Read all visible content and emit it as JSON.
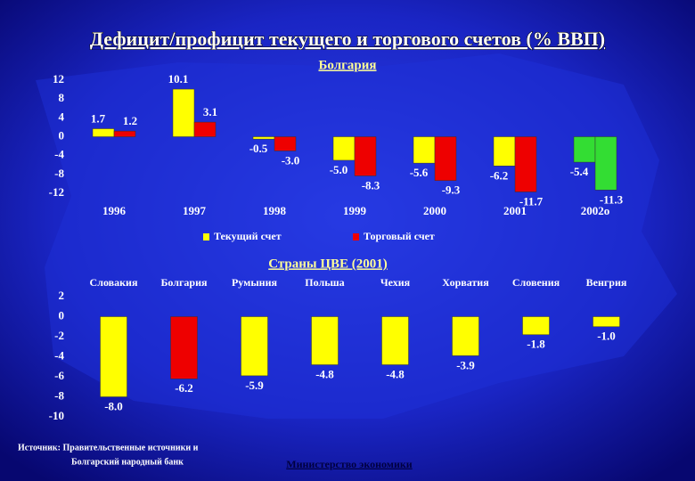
{
  "title": "Дефицит/профицит текущего и торгового счетов (% ВВП)",
  "source": [
    "Источник: Правительственные источники и",
    "Болгарский народный банк"
  ],
  "ministry": "Министерство экономики",
  "chart_data": [
    {
      "type": "bar",
      "title": "Болгария",
      "categories": [
        "1996",
        "1997",
        "1998",
        "1999",
        "2000",
        "2001",
        "2002о"
      ],
      "series": [
        {
          "name": "Текущий счет",
          "color": "#ffff00",
          "colors": [
            "#ffff00",
            "#ffff00",
            "#ffff00",
            "#ffff00",
            "#ffff00",
            "#ffff00",
            "#33dd33"
          ],
          "values": [
            1.7,
            10.1,
            -0.5,
            -5.0,
            -5.6,
            -6.2,
            -5.4
          ],
          "value_labels": [
            "1.7",
            "10.1",
            "-0.5",
            "-5.0",
            "-5.6",
            "-6.2",
            "-5.4"
          ]
        },
        {
          "name": "Торговый счет",
          "color": "#ee0000",
          "colors": [
            "#ee0000",
            "#ee0000",
            "#ee0000",
            "#ee0000",
            "#ee0000",
            "#ee0000",
            "#33dd33"
          ],
          "values": [
            1.2,
            3.1,
            -3.0,
            -8.3,
            -9.3,
            -11.7,
            -11.3
          ],
          "value_labels": [
            "1.2",
            "3.1",
            "-3.0",
            "-8.3",
            "-9.3",
            "-11.7",
            "-11.3"
          ]
        }
      ],
      "ylim": [
        -12,
        12
      ],
      "yticks": [
        12,
        8,
        4,
        0,
        -4,
        -8,
        -12
      ],
      "legend": "bottom"
    },
    {
      "type": "bar",
      "title": "Страны ЦВЕ (2001)",
      "categories": [
        "Словакия",
        "Болгария",
        "Румыния",
        "Польша",
        "Чехия",
        "Хорватия",
        "Словения",
        "Венгрия"
      ],
      "values": [
        -8.0,
        -6.2,
        -5.9,
        -4.8,
        -4.8,
        -3.9,
        -1.8,
        -1.0
      ],
      "value_labels": [
        "-8.0",
        "-6.2",
        "-5.9",
        "-4.8",
        "-4.8",
        "-3.9",
        "-1.8",
        "-1.0"
      ],
      "colors": [
        "#ffff00",
        "#ee0000",
        "#ffff00",
        "#ffff00",
        "#ffff00",
        "#ffff00",
        "#ffff00",
        "#ffff00"
      ],
      "ylim": [
        -10,
        2
      ],
      "yticks": [
        2,
        0,
        -2,
        -4,
        -6,
        -8,
        -10
      ]
    }
  ]
}
